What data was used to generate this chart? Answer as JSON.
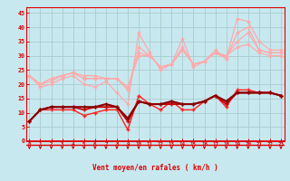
{
  "x": [
    0,
    1,
    2,
    3,
    4,
    5,
    6,
    7,
    8,
    9,
    10,
    11,
    12,
    13,
    14,
    15,
    16,
    17,
    18,
    19,
    20,
    21,
    22,
    23
  ],
  "line_gust1": [
    23,
    19,
    20,
    22,
    23,
    20,
    19,
    21,
    17,
    13,
    38,
    31,
    25,
    27,
    36,
    26,
    28,
    32,
    29,
    43,
    42,
    35,
    32,
    32
  ],
  "line_gust2": [
    23,
    20,
    21,
    23,
    24,
    22,
    22,
    22,
    22,
    18,
    33,
    30,
    26,
    27,
    33,
    27,
    28,
    31,
    29,
    38,
    40,
    32,
    31,
    31
  ],
  "line_gust3": [
    23,
    20,
    22,
    23,
    24,
    22,
    22,
    22,
    22,
    18,
    31,
    30,
    26,
    27,
    32,
    27,
    28,
    31,
    30,
    35,
    38,
    32,
    31,
    31
  ],
  "line_gust4": [
    23,
    20,
    22,
    23,
    24,
    23,
    23,
    22,
    22,
    19,
    30,
    30,
    26,
    27,
    32,
    27,
    28,
    31,
    30,
    33,
    34,
    31,
    30,
    30
  ],
  "line_mean1": [
    7,
    11,
    11,
    11,
    11,
    9,
    10,
    11,
    11,
    4,
    16,
    13,
    11,
    14,
    11,
    11,
    14,
    16,
    12,
    18,
    18,
    17,
    17,
    16
  ],
  "line_mean2": [
    7,
    11,
    12,
    12,
    12,
    11,
    12,
    12,
    12,
    7,
    14,
    13,
    13,
    13,
    13,
    13,
    14,
    16,
    13,
    17,
    17,
    17,
    17,
    16
  ],
  "line_mean3": [
    7,
    11,
    12,
    12,
    12,
    12,
    12,
    13,
    12,
    8,
    14,
    13,
    13,
    14,
    13,
    13,
    14,
    16,
    14,
    17,
    17,
    17,
    17,
    16
  ],
  "bg_color": "#c8e8f0",
  "grid_color": "#aacccc",
  "gust_color": "#ffaaaa",
  "mean1_color": "#ff2222",
  "mean2_color": "#cc0000",
  "mean3_color": "#880000",
  "axis_color": "#dd0000",
  "xlabel": "Vent moyen/en rafales ( km/h )",
  "ylim": [
    0,
    47
  ],
  "xlim": [
    -0.3,
    23.3
  ],
  "yticks": [
    0,
    5,
    10,
    15,
    20,
    25,
    30,
    35,
    40,
    45
  ],
  "xticks": [
    0,
    1,
    2,
    3,
    4,
    5,
    6,
    7,
    8,
    9,
    10,
    11,
    12,
    13,
    14,
    15,
    16,
    17,
    18,
    19,
    20,
    21,
    22,
    23
  ]
}
